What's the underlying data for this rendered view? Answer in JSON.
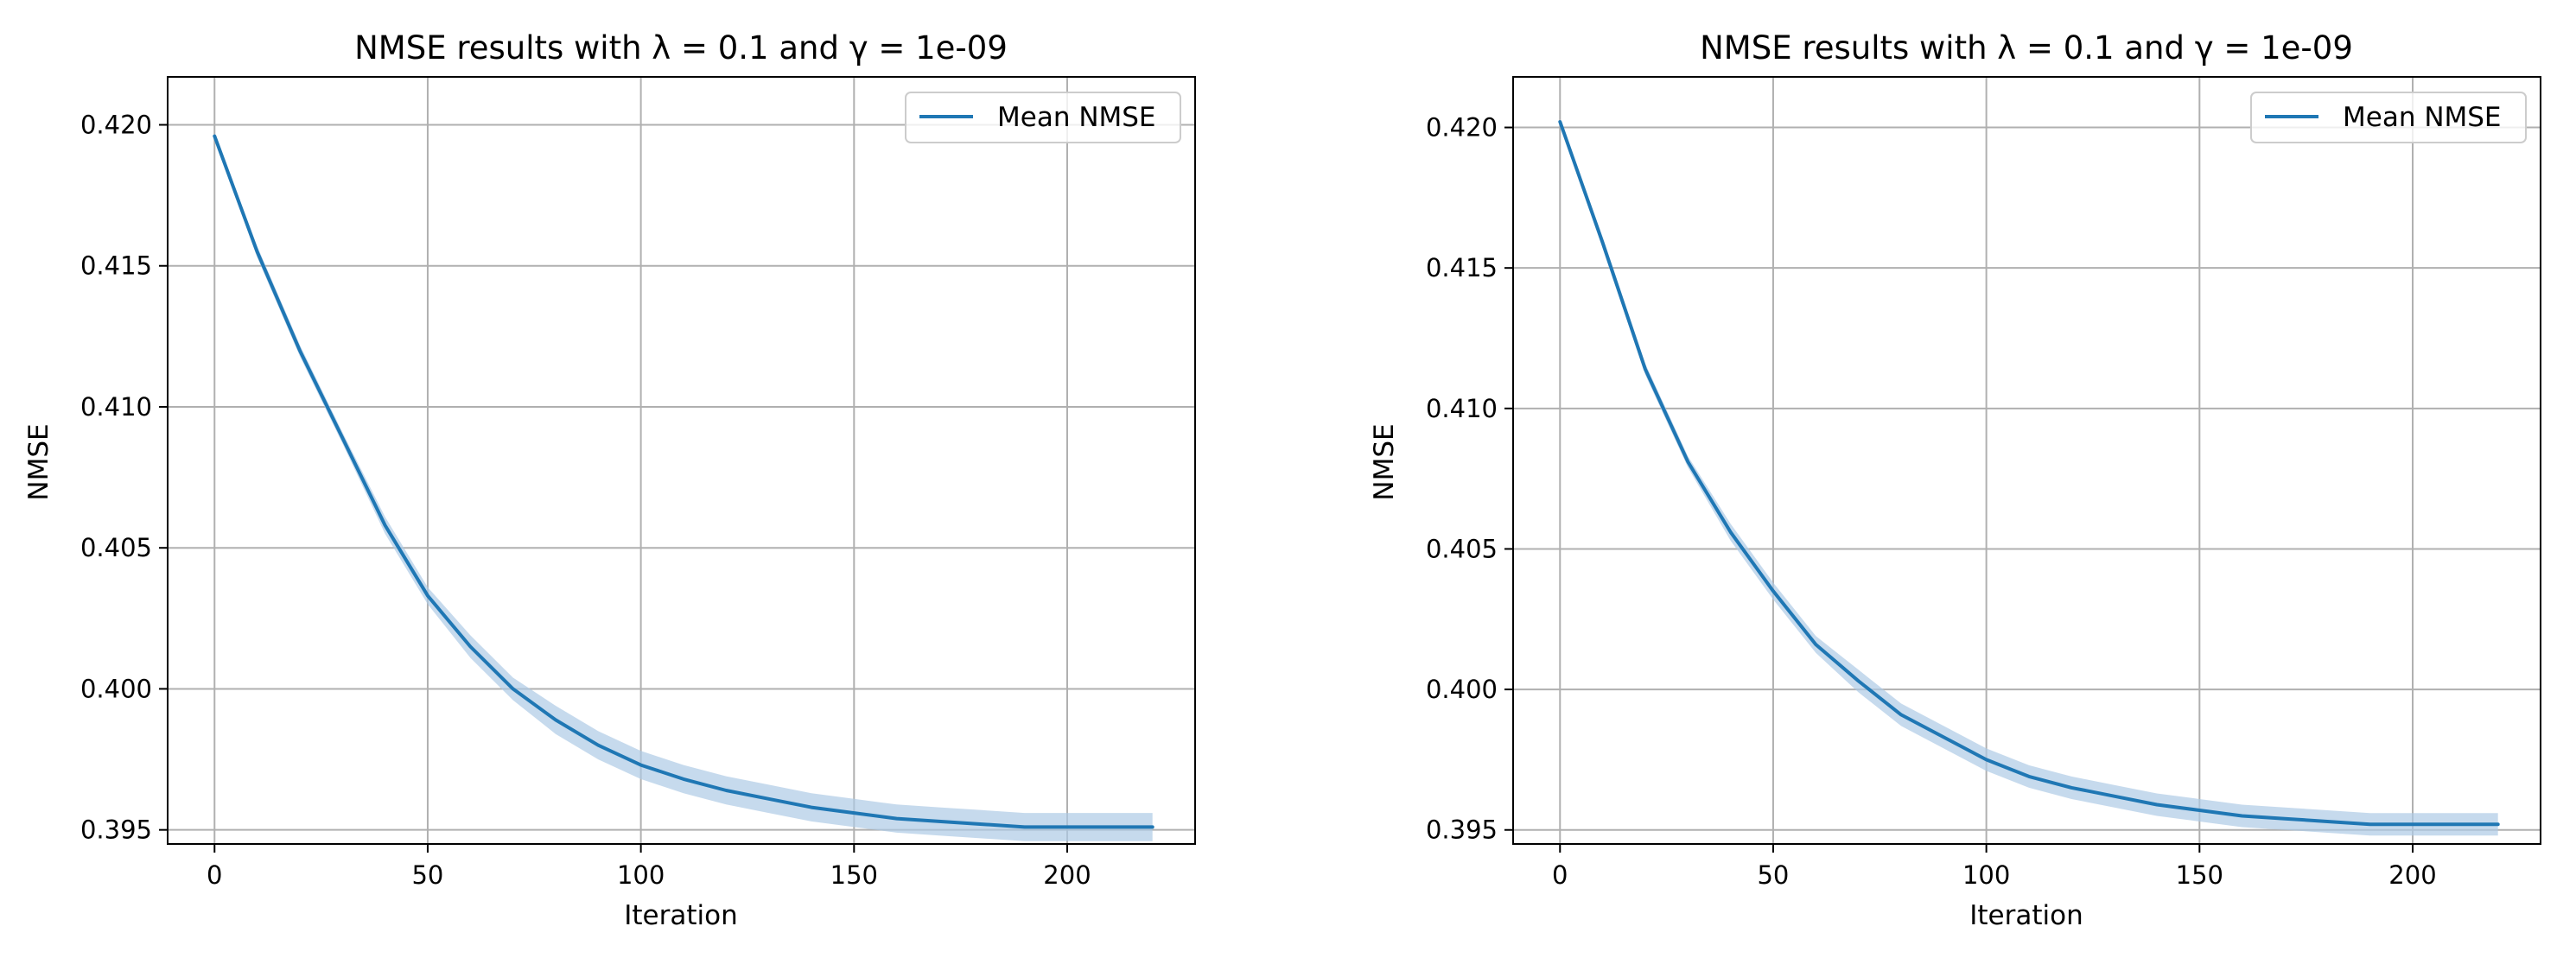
{
  "chart_data": [
    {
      "type": "line",
      "title": "NMSE results with λ = 0.1 and γ = 1e-09",
      "xlabel": "Iteration",
      "ylabel": "NMSE",
      "xlim": [
        -11,
        230
      ],
      "ylim": [
        0.3945,
        0.4217
      ],
      "x_ticks": [
        "0",
        "50",
        "100",
        "150",
        "200"
      ],
      "y_ticks": [
        "0.395",
        "0.400",
        "0.405",
        "0.410",
        "0.415",
        "0.420"
      ],
      "grid": true,
      "legend_position": "top-right",
      "series": [
        {
          "name": "Mean NMSE",
          "color": "#1f77b4",
          "band_color": "#aecbe6",
          "x": [
            0,
            10,
            20,
            30,
            40,
            50,
            60,
            70,
            80,
            90,
            100,
            110,
            120,
            130,
            140,
            150,
            160,
            170,
            180,
            190,
            200,
            210,
            220
          ],
          "y": [
            0.4196,
            0.4155,
            0.412,
            0.4089,
            0.4058,
            0.4033,
            0.4015,
            0.4,
            0.3989,
            0.398,
            0.3973,
            0.3968,
            0.3964,
            0.3961,
            0.3958,
            0.3956,
            0.3954,
            0.3953,
            0.3952,
            0.3951,
            0.3951,
            0.3951,
            0.3951
          ],
          "band_halfwidth": [
            0.0001,
            0.0002,
            0.0002,
            0.0002,
            0.0003,
            0.0003,
            0.0004,
            0.0004,
            0.0005,
            0.0005,
            0.0005,
            0.0005,
            0.0005,
            0.0005,
            0.0005,
            0.0005,
            0.0005,
            0.0005,
            0.0005,
            0.0005,
            0.0005,
            0.0005,
            0.0005
          ]
        }
      ]
    },
    {
      "type": "line",
      "title": "NMSE results with λ = 0.1 and γ = 1e-09",
      "xlabel": "Iteration",
      "ylabel": "NMSE",
      "xlim": [
        -11,
        230
      ],
      "ylim": [
        0.3945,
        0.4218
      ],
      "x_ticks": [
        "0",
        "50",
        "100",
        "150",
        "200"
      ],
      "y_ticks": [
        "0.395",
        "0.400",
        "0.405",
        "0.410",
        "0.415",
        "0.420"
      ],
      "grid": true,
      "legend_position": "top-right",
      "series": [
        {
          "name": "Mean NMSE",
          "color": "#1f77b4",
          "band_color": "#aecbe6",
          "x": [
            0,
            10,
            20,
            30,
            40,
            50,
            60,
            70,
            80,
            90,
            100,
            110,
            120,
            130,
            140,
            150,
            160,
            170,
            180,
            190,
            200,
            210,
            220
          ],
          "y": [
            0.4202,
            0.4159,
            0.4114,
            0.4081,
            0.4056,
            0.4035,
            0.4016,
            0.4003,
            0.3991,
            0.3983,
            0.3975,
            0.3969,
            0.3965,
            0.3962,
            0.3959,
            0.3957,
            0.3955,
            0.3954,
            0.3953,
            0.3952,
            0.3952,
            0.3952,
            0.3952
          ],
          "band_halfwidth": [
            0.0001,
            0.0002,
            0.0002,
            0.0002,
            0.0003,
            0.0003,
            0.0003,
            0.0004,
            0.0004,
            0.0004,
            0.0004,
            0.0004,
            0.0004,
            0.0004,
            0.0004,
            0.0004,
            0.0004,
            0.0004,
            0.0004,
            0.0004,
            0.0004,
            0.0004,
            0.0004
          ]
        }
      ]
    }
  ]
}
